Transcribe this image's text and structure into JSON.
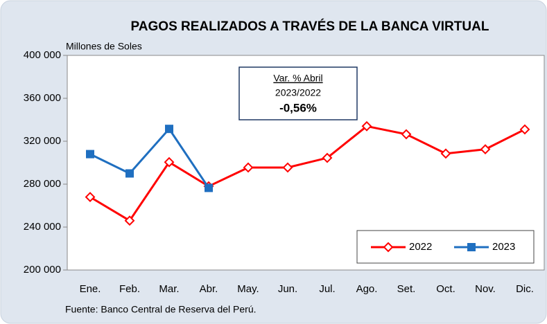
{
  "chart_data": {
    "type": "line",
    "title": "PAGOS REALIZADOS A TRAVÉS DE LA BANCA VIRTUAL",
    "y_axis_label": "Millones de Soles",
    "source": "Fuente: Banco Central de Reserva del Perú.",
    "annotation": {
      "heading": "Var. % Abril",
      "period": "2023/2022",
      "value": "-0,56%"
    },
    "categories": [
      "Ene.",
      "Feb.",
      "Mar.",
      "Abr.",
      "May.",
      "Jun.",
      "Jul.",
      "Ago.",
      "Set.",
      "Oct.",
      "Nov.",
      "Dic."
    ],
    "series": [
      {
        "name": "2022",
        "color": "#ff0000",
        "marker": "diamond",
        "values": [
          268000,
          246000,
          300500,
          278000,
          295500,
          295500,
          304500,
          334000,
          326500,
          308500,
          312500,
          331000
        ]
      },
      {
        "name": "2023",
        "color": "#1f6fc0",
        "marker": "square",
        "values": [
          308000,
          290000,
          331500,
          276500,
          null,
          null,
          null,
          null,
          null,
          null,
          null,
          null
        ]
      }
    ],
    "ylim": [
      200000,
      400000
    ],
    "yticks": [
      {
        "value": 200000,
        "label": "200 000"
      },
      {
        "value": 240000,
        "label": "240 000"
      },
      {
        "value": 280000,
        "label": "280 000"
      },
      {
        "value": 320000,
        "label": "320 000"
      },
      {
        "value": 360000,
        "label": "360 000"
      },
      {
        "value": 400000,
        "label": "400 000"
      }
    ],
    "grid": false,
    "legend": "lower right"
  }
}
